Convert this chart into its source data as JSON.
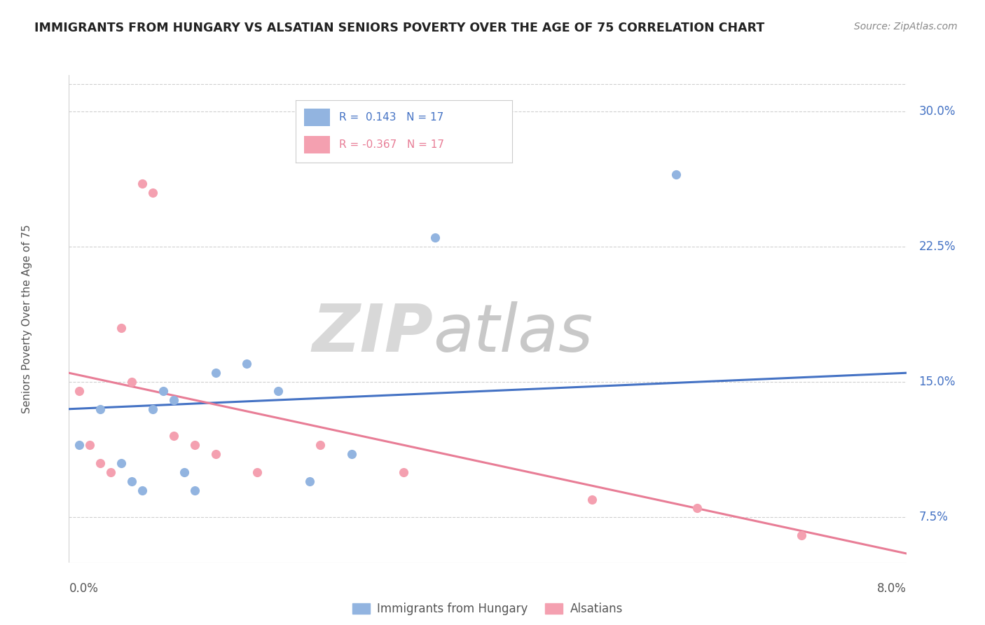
{
  "title": "IMMIGRANTS FROM HUNGARY VS ALSATIAN SENIORS POVERTY OVER THE AGE OF 75 CORRELATION CHART",
  "source": "Source: ZipAtlas.com",
  "ylabel": "Seniors Poverty Over the Age of 75",
  "series1_name": "Immigrants from Hungary",
  "series1_color": "#92b4e0",
  "series1_R": "0.143",
  "series1_N": "17",
  "series2_name": "Alsatians",
  "series2_color": "#f4a0b0",
  "series2_R": "-0.367",
  "series2_N": "17",
  "xlim": [
    0.0,
    8.0
  ],
  "ylim": [
    5.0,
    32.0
  ],
  "yticks": [
    7.5,
    15.0,
    22.5,
    30.0
  ],
  "ytick_labels": [
    "7.5%",
    "15.0%",
    "22.5%",
    "30.0%"
  ],
  "blue_line_color": "#4472c4",
  "pink_line_color": "#e87d96",
  "scatter1_x": [
    0.1,
    0.3,
    0.5,
    0.6,
    0.7,
    0.8,
    0.9,
    1.0,
    1.1,
    1.2,
    1.4,
    1.7,
    2.0,
    2.3,
    2.7,
    3.5,
    5.8
  ],
  "scatter1_y": [
    11.5,
    13.5,
    10.5,
    9.5,
    9.0,
    13.5,
    14.5,
    14.0,
    10.0,
    9.0,
    15.5,
    16.0,
    14.5,
    9.5,
    11.0,
    23.0,
    26.5
  ],
  "scatter2_x": [
    0.1,
    0.2,
    0.3,
    0.4,
    0.5,
    0.6,
    0.7,
    0.8,
    1.0,
    1.2,
    1.4,
    1.8,
    2.4,
    3.2,
    5.0,
    6.0,
    7.0
  ],
  "scatter2_y": [
    14.5,
    11.5,
    10.5,
    10.0,
    18.0,
    15.0,
    26.0,
    25.5,
    12.0,
    11.5,
    11.0,
    10.0,
    11.5,
    10.0,
    8.5,
    8.0,
    6.5
  ],
  "line1_x": [
    0.0,
    8.0
  ],
  "line1_y": [
    13.5,
    15.5
  ],
  "line2_x": [
    0.0,
    8.0
  ],
  "line2_y": [
    15.5,
    5.5
  ],
  "background_color": "#ffffff",
  "grid_color": "#d0d0d0",
  "title_color": "#222222",
  "source_color": "#888888"
}
